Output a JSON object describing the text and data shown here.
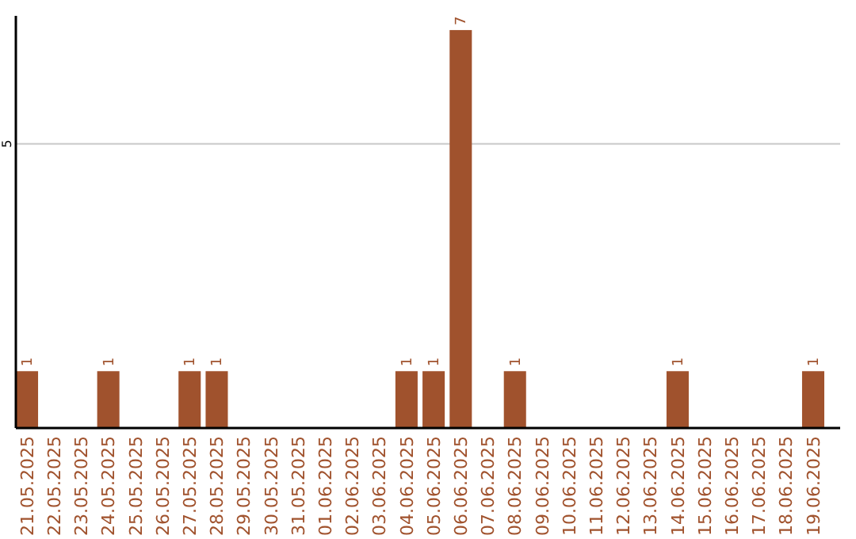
{
  "chart_data": {
    "type": "bar",
    "categories": [
      "21.05.2025",
      "22.05.2025",
      "23.05.2025",
      "24.05.2025",
      "25.05.2025",
      "26.05.2025",
      "27.05.2025",
      "28.05.2025",
      "29.05.2025",
      "30.05.2025",
      "31.05.2025",
      "01.06.2025",
      "02.06.2025",
      "03.06.2025",
      "04.06.2025",
      "05.06.2025",
      "06.06.2025",
      "07.06.2025",
      "08.06.2025",
      "09.06.2025",
      "10.06.2025",
      "11.06.2025",
      "12.06.2025",
      "13.06.2025",
      "14.06.2025",
      "15.06.2025",
      "16.06.2025",
      "17.06.2025",
      "18.06.2025",
      "19.06.2025"
    ],
    "values": [
      1,
      0,
      0,
      1,
      0,
      0,
      1,
      1,
      0,
      0,
      0,
      0,
      0,
      0,
      1,
      1,
      7,
      0,
      1,
      0,
      0,
      0,
      0,
      0,
      1,
      0,
      0,
      0,
      0,
      1
    ],
    "value_labels": [
      "1",
      null,
      null,
      "1",
      null,
      null,
      "1",
      "1",
      null,
      null,
      null,
      null,
      null,
      null,
      "1",
      "1",
      "7",
      null,
      "1",
      null,
      null,
      null,
      null,
      null,
      "1",
      null,
      null,
      null,
      null,
      "1"
    ],
    "color": "#a0522d",
    "ylim": [
      0,
      7.25
    ],
    "yticks": [
      5
    ],
    "grid": "y"
  }
}
